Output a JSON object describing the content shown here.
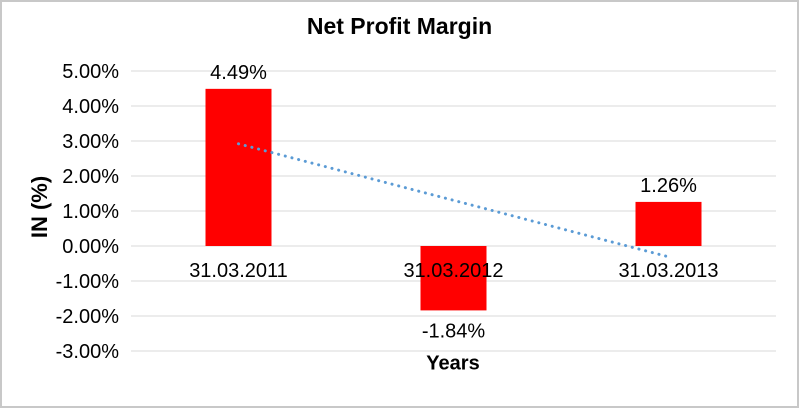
{
  "chart_data": {
    "type": "bar",
    "title": "Net Profit Margin",
    "xlabel": "Years",
    "ylabel": "IN (%)",
    "categories": [
      "31.03.2011",
      "31.03.2012",
      "31.03.2013"
    ],
    "values": [
      4.49,
      -1.84,
      1.26
    ],
    "data_labels": [
      "4.49%",
      "-1.84%",
      "1.26%"
    ],
    "ytick_labels": [
      "5.00%",
      "4.00%",
      "3.00%",
      "2.00%",
      "1.00%",
      "0.00%",
      "-1.00%",
      "-2.00%",
      "-3.00%"
    ],
    "ytick_values": [
      5,
      4,
      3,
      2,
      1,
      0,
      -1,
      -2,
      -3
    ],
    "ylim": [
      -3,
      5
    ],
    "grid": true,
    "legend": "none",
    "trendline": {
      "type": "linear",
      "style": "dotted",
      "endpoint_values": [
        2.92,
        -0.31
      ]
    },
    "colors": {
      "bar": "#FF0000",
      "trendline": "#5B9BD5",
      "gridline": "#D9D9D9",
      "text": "#000000",
      "frame_border": "#C8C8C8",
      "background": "#FFFFFF"
    }
  }
}
